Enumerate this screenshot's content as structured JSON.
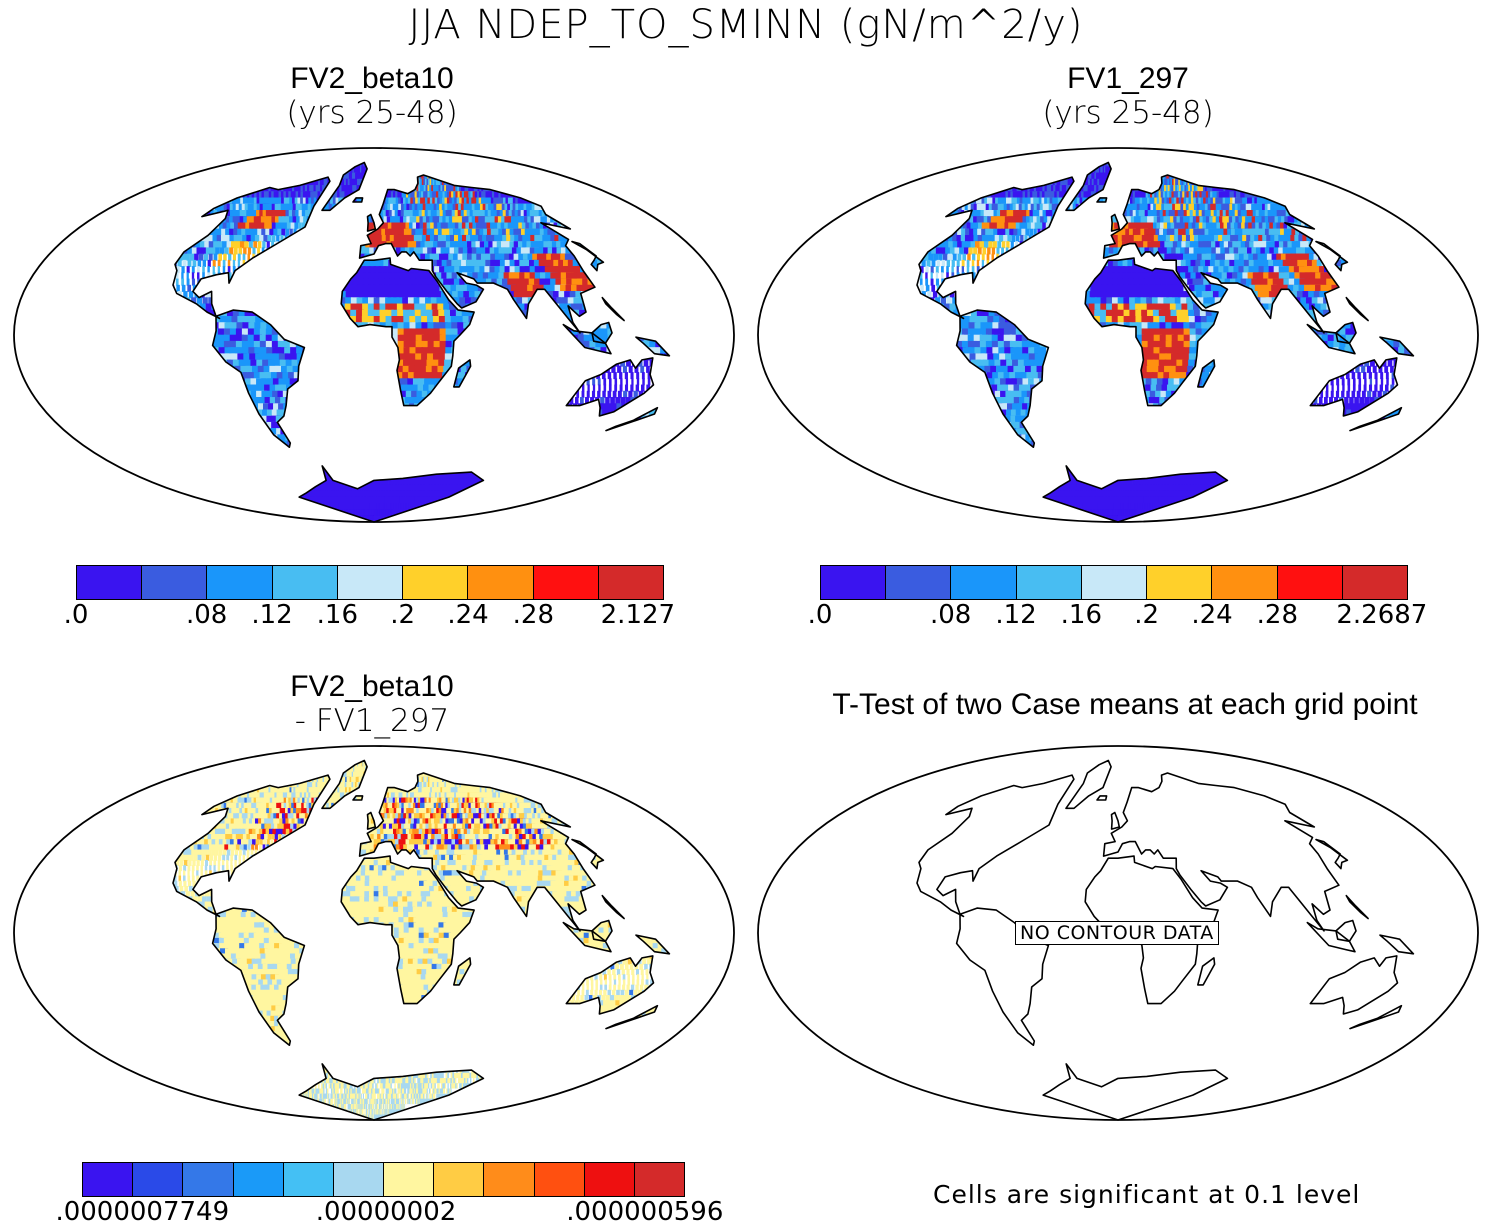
{
  "title": "JJA NDEP_TO_SMINN (gN/m^2/y)",
  "panels": [
    {
      "id": "fv2",
      "title": "FV2_beta10",
      "subtitle": "(yrs 25-48)",
      "colorbar": {
        "colors": [
          "#3a14f0",
          "#3a5ce0",
          "#1a96fa",
          "#48bdf2",
          "#c8e8f8",
          "#ffd02a",
          "#ff9010",
          "#ff1010",
          "#d42a2a"
        ],
        "ticks": [
          ".0",
          ".08",
          ".12",
          ".16",
          ".2",
          ".24",
          ".28",
          "2.127"
        ]
      }
    },
    {
      "id": "fv1",
      "title": "FV1_297",
      "subtitle": "(yrs 25-48)",
      "colorbar": {
        "colors": [
          "#3a14f0",
          "#3a5ce0",
          "#1a96fa",
          "#48bdf2",
          "#c8e8f8",
          "#ffd02a",
          "#ff9010",
          "#ff1010",
          "#d42a2a"
        ],
        "ticks": [
          ".0",
          ".08",
          ".12",
          ".16",
          ".2",
          ".24",
          ".28",
          "2.2687"
        ]
      }
    },
    {
      "id": "diff",
      "title": "FV2_beta10",
      "subtitle": "- FV1_297",
      "colorbar": {
        "colors": [
          "#3a14f0",
          "#2a4ae8",
          "#3478e8",
          "#1a9af8",
          "#44c0f4",
          "#a8d8f0",
          "#fff6a0",
          "#ffcc44",
          "#ff8c1a",
          "#ff5010",
          "#ee1010",
          "#d42a2a"
        ],
        "ticks": [
          ".0000007749",
          ".00000002",
          ".000000596"
        ]
      }
    },
    {
      "id": "ttest",
      "title": "T-Test of two Case means at each grid point",
      "no_data_label": "NO CONTOUR DATA",
      "footnote": "Cells are significant at 0.1 level"
    }
  ]
}
